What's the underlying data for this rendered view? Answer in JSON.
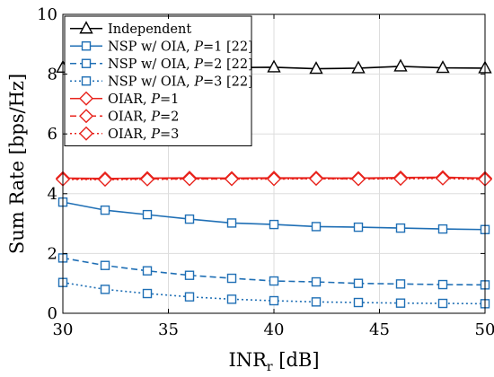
{
  "chart_data": {
    "type": "line",
    "title": "",
    "xlabel": "INR",
    "xlabel_sub": "r",
    "xlabel_unit": " [dB]",
    "ylabel": "Sum Rate [bps/Hz]",
    "xlim": [
      30,
      50
    ],
    "ylim": [
      0,
      10
    ],
    "xticks": [
      30,
      35,
      40,
      45,
      50
    ],
    "yticks": [
      0,
      2,
      4,
      6,
      8,
      10
    ],
    "grid": true,
    "legend_position": "top-left",
    "x": [
      30,
      32,
      34,
      36,
      38,
      40,
      42,
      44,
      46,
      48,
      50
    ],
    "series": [
      {
        "name_parts": [
          "Independent"
        ],
        "color": "#000000",
        "marker": "triangle",
        "dash": "solid",
        "values": [
          8.22,
          8.2,
          8.24,
          8.19,
          8.22,
          8.23,
          8.18,
          8.2,
          8.26,
          8.21,
          8.2
        ]
      },
      {
        "name_parts": [
          "NSP w/ OIA, ",
          "P",
          "=1 [22]"
        ],
        "color": "#1f6fb5",
        "marker": "square",
        "dash": "solid",
        "values": [
          3.72,
          3.45,
          3.3,
          3.15,
          3.02,
          2.97,
          2.9,
          2.88,
          2.85,
          2.82,
          2.8
        ]
      },
      {
        "name_parts": [
          "NSP w/ OIA, ",
          "P",
          "=2 [22]"
        ],
        "color": "#1f6fb5",
        "marker": "square",
        "dash": "dashed",
        "values": [
          1.85,
          1.6,
          1.42,
          1.27,
          1.17,
          1.08,
          1.05,
          1.0,
          0.98,
          0.96,
          0.95
        ]
      },
      {
        "name_parts": [
          "NSP w/ OIA, ",
          "P",
          "=3 [22]"
        ],
        "color": "#1f6fb5",
        "marker": "square",
        "dash": "dotted",
        "values": [
          1.03,
          0.8,
          0.66,
          0.55,
          0.47,
          0.42,
          0.38,
          0.36,
          0.34,
          0.33,
          0.32
        ]
      },
      {
        "name_parts": [
          "OIAR, ",
          "P",
          "=1"
        ],
        "color": "#e8231c",
        "marker": "diamond",
        "dash": "solid",
        "values": [
          4.52,
          4.51,
          4.52,
          4.53,
          4.52,
          4.53,
          4.53,
          4.52,
          4.54,
          4.55,
          4.52
        ]
      },
      {
        "name_parts": [
          "OIAR, ",
          "P",
          "=2"
        ],
        "color": "#e8231c",
        "marker": "diamond",
        "dash": "dashed",
        "values": [
          4.5,
          4.49,
          4.5,
          4.5,
          4.5,
          4.51,
          4.51,
          4.5,
          4.52,
          4.53,
          4.5
        ]
      },
      {
        "name_parts": [
          "OIAR, ",
          "P",
          "=3"
        ],
        "color": "#e8231c",
        "marker": "diamond",
        "dash": "dotted",
        "values": [
          4.48,
          4.47,
          4.48,
          4.49,
          4.49,
          4.49,
          4.5,
          4.49,
          4.5,
          4.51,
          4.48
        ]
      }
    ]
  }
}
